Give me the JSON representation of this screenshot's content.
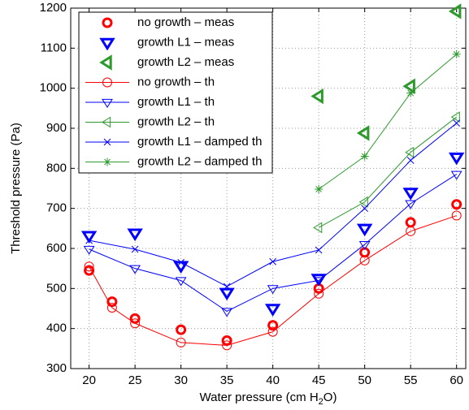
{
  "chart_data": {
    "type": "line",
    "xlabel": [
      "Water pressure (cm H",
      "2",
      "O)"
    ],
    "ylabel": "Threshold pressure (Pa)",
    "xlim": [
      18,
      61
    ],
    "ylim": [
      300,
      1200
    ],
    "xticks": [
      20,
      25,
      30,
      35,
      40,
      45,
      50,
      55,
      60
    ],
    "yticks": [
      300,
      400,
      500,
      600,
      700,
      800,
      900,
      1000,
      1100,
      1200
    ],
    "grid": true,
    "legend": "upper left",
    "series": [
      {
        "name": "no growth – meas",
        "color": "#ff0000",
        "marker": "circle",
        "bold": true,
        "line": false,
        "x": [
          20,
          22.5,
          25,
          30,
          35,
          40,
          45,
          50,
          55,
          60
        ],
        "values": [
          545,
          467,
          425,
          397,
          370,
          408,
          500,
          590,
          665,
          710
        ]
      },
      {
        "name": "growth L1 – meas",
        "color": "#0000ff",
        "marker": "triangle-down",
        "bold": true,
        "line": false,
        "x": [
          20,
          25,
          30,
          35,
          40,
          45,
          50,
          55,
          60
        ],
        "values": [
          632,
          638,
          557,
          490,
          450,
          525,
          650,
          740,
          828
        ]
      },
      {
        "name": "growth L2 – meas",
        "color": "#2e9a2e",
        "marker": "triangle-left",
        "bold": true,
        "line": false,
        "x": [
          45,
          50,
          55,
          60
        ],
        "values": [
          980,
          888,
          1005,
          1192
        ]
      },
      {
        "name": "no growth – th",
        "color": "#ff0000",
        "marker": "circle",
        "bold": false,
        "line": true,
        "x": [
          20,
          22.5,
          25,
          30,
          35,
          40,
          45,
          50,
          55,
          60
        ],
        "values": [
          555,
          452,
          413,
          365,
          358,
          392,
          487,
          570,
          643,
          682
        ]
      },
      {
        "name": "growth L1 – th",
        "color": "#0000ff",
        "marker": "triangle-down",
        "bold": false,
        "line": true,
        "x": [
          20,
          25,
          30,
          35,
          40,
          45,
          50,
          55,
          60
        ],
        "values": [
          598,
          550,
          520,
          443,
          500,
          520,
          610,
          712,
          785
        ]
      },
      {
        "name": "growth L2 – th",
        "color": "#2e9a2e",
        "marker": "triangle-left",
        "bold": false,
        "line": true,
        "x": [
          45,
          50,
          55,
          60
        ],
        "values": [
          652,
          716,
          840,
          928
        ]
      },
      {
        "name": "growth L1 – damped th",
        "color": "#0000ff",
        "marker": "x",
        "bold": false,
        "line": true,
        "x": [
          20,
          25,
          30,
          35,
          40,
          45,
          50,
          55,
          60
        ],
        "values": [
          620,
          598,
          565,
          505,
          567,
          596,
          700,
          820,
          913
        ]
      },
      {
        "name": "growth L2 – damped th",
        "color": "#2e9a2e",
        "marker": "star",
        "bold": false,
        "line": true,
        "x": [
          45,
          50,
          55,
          60
        ],
        "values": [
          748,
          830,
          988,
          1085
        ]
      }
    ]
  }
}
